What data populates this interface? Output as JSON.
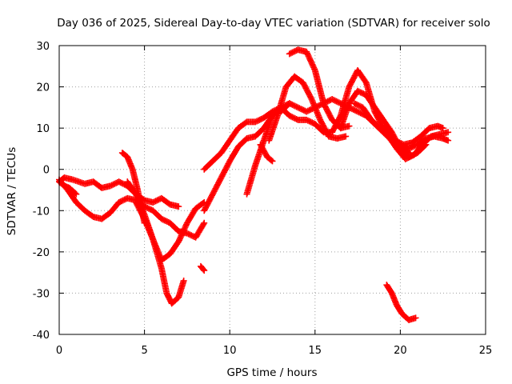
{
  "chart_data": {
    "type": "scatter",
    "title": "Day 036 of 2025, Sidereal Day-to-day VTEC variation (SDTVAR) for receiver solo",
    "xlabel": "GPS time / hours",
    "ylabel": "SDTVAR / TECUs",
    "xlim": [
      0,
      25
    ],
    "ylim": [
      -40,
      30
    ],
    "xticks": [
      0,
      5,
      10,
      15,
      20,
      25
    ],
    "yticks": [
      -40,
      -30,
      -20,
      -10,
      0,
      10,
      20,
      30
    ],
    "grid": true,
    "legend": "none",
    "marker": "+",
    "series_color": "#ff0000",
    "series": [
      {
        "name": "trace-1",
        "points": [
          [
            0,
            -3
          ],
          [
            0.3,
            -2
          ],
          [
            0.8,
            -2.5
          ],
          [
            1.5,
            -3.5
          ],
          [
            2.0,
            -3
          ],
          [
            2.5,
            -4.5
          ],
          [
            3.0,
            -4
          ],
          [
            3.5,
            -3
          ],
          [
            4.0,
            -4
          ],
          [
            4.5,
            -6
          ],
          [
            5.0,
            -7.5
          ],
          [
            5.5,
            -8
          ],
          [
            6.0,
            -7
          ],
          [
            6.5,
            -8.5
          ],
          [
            7.0,
            -9
          ]
        ]
      },
      {
        "name": "trace-2",
        "points": [
          [
            0,
            -2.5
          ],
          [
            0.5,
            -5
          ],
          [
            1.0,
            -8
          ],
          [
            1.5,
            -10
          ],
          [
            2.0,
            -11.5
          ],
          [
            2.5,
            -12
          ],
          [
            3.0,
            -10.5
          ],
          [
            3.5,
            -8
          ],
          [
            4.0,
            -7
          ],
          [
            4.5,
            -7.5
          ],
          [
            5.0,
            -9
          ],
          [
            5.5,
            -10
          ],
          [
            6.0,
            -12
          ],
          [
            6.5,
            -13
          ],
          [
            7.0,
            -15
          ],
          [
            7.5,
            -15.5
          ],
          [
            8.0,
            -16.5
          ],
          [
            8.5,
            -13
          ]
        ]
      },
      {
        "name": "trace-3",
        "points": [
          [
            0,
            -3
          ],
          [
            0.3,
            -4
          ],
          [
            0.6,
            -4.5
          ],
          [
            1.0,
            -6
          ]
        ]
      },
      {
        "name": "trace-4",
        "points": [
          [
            3.7,
            4
          ],
          [
            4.0,
            3
          ],
          [
            4.3,
            0
          ],
          [
            4.6,
            -5
          ],
          [
            5.0,
            -13
          ]
        ]
      },
      {
        "name": "trace-5",
        "points": [
          [
            4.0,
            -3
          ],
          [
            4.5,
            -6
          ],
          [
            5.0,
            -11
          ],
          [
            5.5,
            -17
          ],
          [
            6.0,
            -24
          ],
          [
            6.3,
            -30
          ],
          [
            6.6,
            -32.5
          ],
          [
            7.0,
            -31
          ],
          [
            7.3,
            -27
          ]
        ]
      },
      {
        "name": "trace-6",
        "points": [
          [
            4.5,
            -8
          ],
          [
            5.0,
            -12
          ],
          [
            5.5,
            -17
          ],
          [
            6.0,
            -22
          ],
          [
            6.5,
            -20.5
          ],
          [
            7.0,
            -17.5
          ],
          [
            7.5,
            -13
          ],
          [
            8.0,
            -9.5
          ],
          [
            8.5,
            -8
          ]
        ]
      },
      {
        "name": "trace-7",
        "points": [
          [
            8.3,
            -23.5
          ],
          [
            8.5,
            -24.5
          ]
        ]
      },
      {
        "name": "trace-8",
        "points": [
          [
            8.5,
            -10
          ],
          [
            9.0,
            -6
          ],
          [
            9.5,
            -2
          ],
          [
            10.0,
            2
          ],
          [
            10.5,
            5.5
          ],
          [
            11.0,
            7.5
          ],
          [
            11.5,
            8
          ],
          [
            12.0,
            10
          ],
          [
            12.5,
            13
          ],
          [
            13.0,
            15
          ],
          [
            13.5,
            16
          ]
        ]
      },
      {
        "name": "trace-9",
        "points": [
          [
            8.5,
            0
          ],
          [
            9.0,
            2
          ],
          [
            9.5,
            4
          ],
          [
            10.0,
            7
          ],
          [
            10.5,
            10
          ],
          [
            11.0,
            11.5
          ],
          [
            11.5,
            11.5
          ],
          [
            12.0,
            12.5
          ],
          [
            12.5,
            14
          ],
          [
            13.0,
            15
          ]
        ]
      },
      {
        "name": "trace-10",
        "points": [
          [
            11.0,
            -6
          ],
          [
            11.5,
            1
          ],
          [
            12.0,
            7
          ],
          [
            12.5,
            13
          ],
          [
            13.0,
            14.5
          ]
        ]
      },
      {
        "name": "trace-11",
        "points": [
          [
            11.8,
            6
          ],
          [
            12.2,
            3
          ],
          [
            12.5,
            2
          ]
        ]
      },
      {
        "name": "trace-12",
        "points": [
          [
            12.3,
            7
          ],
          [
            12.8,
            13
          ],
          [
            13.3,
            20
          ],
          [
            13.8,
            22.5
          ],
          [
            14.3,
            21
          ],
          [
            14.8,
            17
          ],
          [
            15.3,
            12
          ],
          [
            15.8,
            8
          ],
          [
            16.3,
            7.5
          ],
          [
            16.8,
            8
          ]
        ]
      },
      {
        "name": "trace-13",
        "points": [
          [
            13.5,
            28
          ],
          [
            14.0,
            29
          ],
          [
            14.5,
            28.5
          ],
          [
            15.0,
            24
          ],
          [
            15.5,
            16
          ],
          [
            16.0,
            12
          ],
          [
            16.5,
            10
          ],
          [
            17.0,
            10.5
          ]
        ]
      },
      {
        "name": "trace-14",
        "points": [
          [
            13.0,
            15
          ],
          [
            13.5,
            13
          ],
          [
            14.0,
            12
          ],
          [
            14.5,
            12
          ],
          [
            15.0,
            11
          ],
          [
            15.5,
            9
          ],
          [
            16.0,
            9
          ],
          [
            16.5,
            13
          ],
          [
            17.0,
            20
          ],
          [
            17.5,
            24
          ],
          [
            18.0,
            21
          ],
          [
            18.5,
            14
          ],
          [
            19.0,
            10
          ],
          [
            19.5,
            8
          ],
          [
            20.0,
            6
          ],
          [
            20.5,
            4
          ]
        ]
      },
      {
        "name": "trace-15",
        "points": [
          [
            13.0,
            14
          ],
          [
            13.5,
            16
          ],
          [
            14.0,
            15
          ],
          [
            14.5,
            14
          ],
          [
            15.0,
            15
          ],
          [
            15.5,
            16
          ],
          [
            16.0,
            17
          ],
          [
            16.5,
            16
          ],
          [
            17.0,
            15
          ],
          [
            17.5,
            14
          ],
          [
            18.0,
            13
          ],
          [
            18.5,
            11
          ],
          [
            19.0,
            9
          ],
          [
            19.5,
            7
          ],
          [
            20.0,
            6
          ],
          [
            20.5,
            5
          ],
          [
            21.0,
            6
          ],
          [
            21.5,
            7.5
          ],
          [
            22.0,
            8
          ],
          [
            22.5,
            7.5
          ],
          [
            22.8,
            7
          ]
        ]
      },
      {
        "name": "trace-16",
        "points": [
          [
            16.5,
            10
          ],
          [
            17.0,
            16
          ],
          [
            17.5,
            19
          ],
          [
            18.0,
            18
          ],
          [
            18.5,
            15
          ],
          [
            19.0,
            12
          ],
          [
            19.5,
            9
          ],
          [
            20.0,
            5
          ],
          [
            20.5,
            3
          ],
          [
            21.0,
            4
          ],
          [
            21.5,
            6
          ]
        ]
      },
      {
        "name": "trace-17",
        "points": [
          [
            17.3,
            16
          ],
          [
            17.8,
            15
          ],
          [
            18.3,
            12
          ],
          [
            18.8,
            10
          ],
          [
            19.3,
            8
          ],
          [
            19.8,
            5
          ],
          [
            20.3,
            2.5
          ],
          [
            20.8,
            3.5
          ],
          [
            21.3,
            6
          ],
          [
            21.8,
            8
          ],
          [
            22.3,
            8.5
          ],
          [
            22.8,
            9
          ]
        ]
      },
      {
        "name": "trace-18",
        "points": [
          [
            19.7,
            7
          ],
          [
            20.2,
            6
          ],
          [
            20.7,
            6.5
          ],
          [
            21.2,
            8
          ],
          [
            21.7,
            10
          ],
          [
            22.2,
            10.5
          ],
          [
            22.5,
            10
          ]
        ]
      },
      {
        "name": "trace-19",
        "points": [
          [
            19.2,
            -28
          ],
          [
            19.5,
            -30
          ],
          [
            19.8,
            -33
          ],
          [
            20.1,
            -35
          ],
          [
            20.5,
            -36.5
          ],
          [
            20.9,
            -36
          ]
        ]
      }
    ]
  }
}
